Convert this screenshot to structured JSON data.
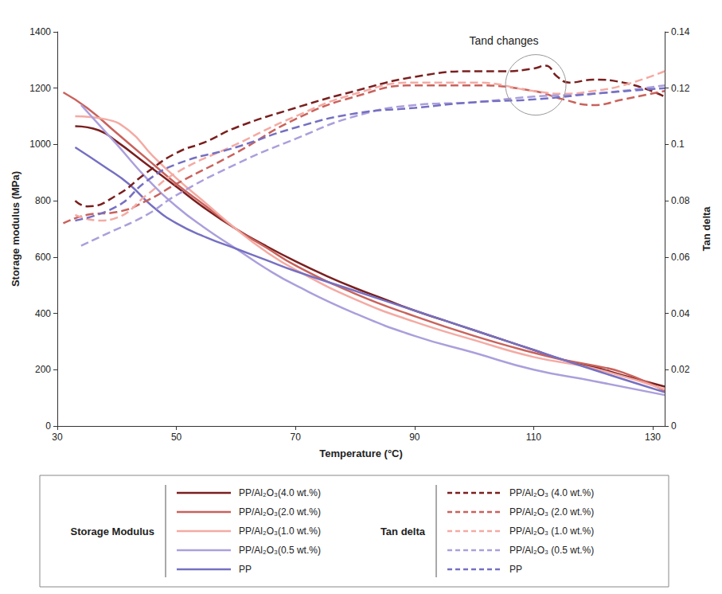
{
  "chart_data": {
    "type": "line",
    "x_label": "Temperature (°C)",
    "y_label": "Storage modulus (MPa)",
    "y2_label": "Tan delta",
    "xlim": [
      30,
      132
    ],
    "xticks": [
      30,
      50,
      70,
      90,
      110,
      130
    ],
    "ylim": [
      0,
      1400
    ],
    "yticks": [
      0,
      200,
      400,
      600,
      800,
      1000,
      1200,
      1400
    ],
    "y2lim": [
      0,
      0.14
    ],
    "y2ticks": [
      0,
      0.02,
      0.04,
      0.06,
      0.08,
      0.1,
      0.12,
      0.14
    ],
    "grid": false,
    "legend": "bottom",
    "legend_groups": [
      {
        "title": "Storage Modulus",
        "axis": "y"
      },
      {
        "title": "Tan delta",
        "axis": "y2"
      }
    ],
    "annotations": [
      {
        "text": "Tand changes",
        "x": 105,
        "y": 1370
      }
    ],
    "series": [
      {
        "name": "PP/Al₂O₃(4.0 wt.%)",
        "color": "#7a1f1f",
        "line_style": "solid",
        "axis": "y",
        "x": [
          33,
          37,
          40,
          45,
          50,
          55,
          60,
          65,
          70,
          75,
          80,
          85,
          90,
          95,
          100,
          105,
          110,
          115,
          120,
          125,
          132
        ],
        "values": [
          1065,
          1050,
          1010,
          930,
          850,
          770,
          700,
          640,
          585,
          535,
          490,
          450,
          410,
          375,
          340,
          305,
          270,
          235,
          210,
          180,
          140
        ]
      },
      {
        "name": "PP/Al₂O₃(2.0 wt.%)",
        "color": "#c9625c",
        "line_style": "solid",
        "axis": "y",
        "x": [
          31,
          35,
          40,
          45,
          50,
          55,
          60,
          65,
          70,
          80,
          90,
          100,
          110,
          115,
          120,
          125,
          132
        ],
        "values": [
          1185,
          1130,
          1040,
          950,
          860,
          780,
          700,
          635,
          570,
          470,
          390,
          320,
          260,
          235,
          215,
          190,
          125
        ]
      },
      {
        "name": "PP/Al₂O₃(1.0 wt.%)",
        "color": "#f4aaa3",
        "line_style": "solid",
        "axis": "y",
        "x": [
          33,
          38,
          42,
          46,
          50,
          55,
          60,
          65,
          70,
          80,
          90,
          100,
          110,
          120,
          132
        ],
        "values": [
          1100,
          1090,
          1050,
          960,
          880,
          790,
          700,
          620,
          555,
          450,
          370,
          305,
          245,
          205,
          130
        ]
      },
      {
        "name": "PP/Al₂O₃(0.5 wt.%)",
        "color": "#ab9fdc",
        "line_style": "solid",
        "axis": "y",
        "x": [
          34,
          37,
          40,
          45,
          50,
          55,
          60,
          65,
          70,
          80,
          90,
          100,
          110,
          120,
          132
        ],
        "values": [
          1140,
          1070,
          1000,
          880,
          780,
          700,
          630,
          560,
          500,
          400,
          320,
          260,
          200,
          160,
          110
        ]
      },
      {
        "name": "PP",
        "color": "#7570c2",
        "line_style": "solid",
        "axis": "y",
        "x": [
          33,
          38,
          42,
          46,
          50,
          55,
          60,
          65,
          70,
          80,
          90,
          100,
          110,
          120,
          132
        ],
        "values": [
          990,
          920,
          860,
          780,
          720,
          670,
          630,
          590,
          550,
          480,
          410,
          340,
          270,
          200,
          120
        ]
      },
      {
        "name": "PP/Al₂O₃ (4.0 wt.%)",
        "color": "#7a1f1f",
        "line_style": "dashed",
        "axis": "y2",
        "x": [
          33,
          35,
          40,
          45,
          50,
          55,
          60,
          70,
          80,
          90,
          100,
          105,
          110,
          112,
          114,
          116,
          120,
          125,
          132
        ],
        "values": [
          0.08,
          0.078,
          0.082,
          0.09,
          0.097,
          0.101,
          0.106,
          0.113,
          0.119,
          0.124,
          0.126,
          0.126,
          0.127,
          0.128,
          0.124,
          0.122,
          0.123,
          0.122,
          0.117
        ]
      },
      {
        "name": "PP/Al₂O₃ (2.0 wt.%)",
        "color": "#c9625c",
        "line_style": "dashed",
        "axis": "y2",
        "x": [
          31,
          35,
          40,
          45,
          50,
          60,
          70,
          80,
          90,
          100,
          110,
          115,
          120,
          125,
          132
        ],
        "values": [
          0.072,
          0.075,
          0.076,
          0.08,
          0.086,
          0.097,
          0.109,
          0.117,
          0.121,
          0.121,
          0.119,
          0.116,
          0.114,
          0.116,
          0.119
        ]
      },
      {
        "name": "PP/Al₂O₃ (1.0 wt.%)",
        "color": "#f4aaa3",
        "line_style": "dashed",
        "axis": "y2",
        "x": [
          33,
          37,
          40,
          45,
          50,
          60,
          70,
          80,
          90,
          100,
          110,
          115,
          120,
          125,
          132
        ],
        "values": [
          0.075,
          0.073,
          0.074,
          0.082,
          0.09,
          0.1,
          0.11,
          0.118,
          0.122,
          0.122,
          0.119,
          0.118,
          0.119,
          0.121,
          0.126
        ]
      },
      {
        "name": "PP/Al₂O₃ (0.5 wt.%)",
        "color": "#ab9fdc",
        "line_style": "dashed",
        "axis": "y2",
        "x": [
          34,
          38,
          45,
          50,
          60,
          70,
          80,
          90,
          100,
          110,
          120,
          132
        ],
        "values": [
          0.064,
          0.068,
          0.075,
          0.082,
          0.093,
          0.102,
          0.11,
          0.114,
          0.115,
          0.117,
          0.118,
          0.121
        ]
      },
      {
        "name": "PP",
        "color": "#7570c2",
        "line_style": "dashed",
        "axis": "y2",
        "x": [
          33,
          40,
          45,
          50,
          60,
          70,
          80,
          90,
          100,
          110,
          120,
          132
        ],
        "values": [
          0.073,
          0.078,
          0.087,
          0.093,
          0.099,
          0.106,
          0.111,
          0.113,
          0.115,
          0.116,
          0.118,
          0.12
        ]
      }
    ]
  }
}
